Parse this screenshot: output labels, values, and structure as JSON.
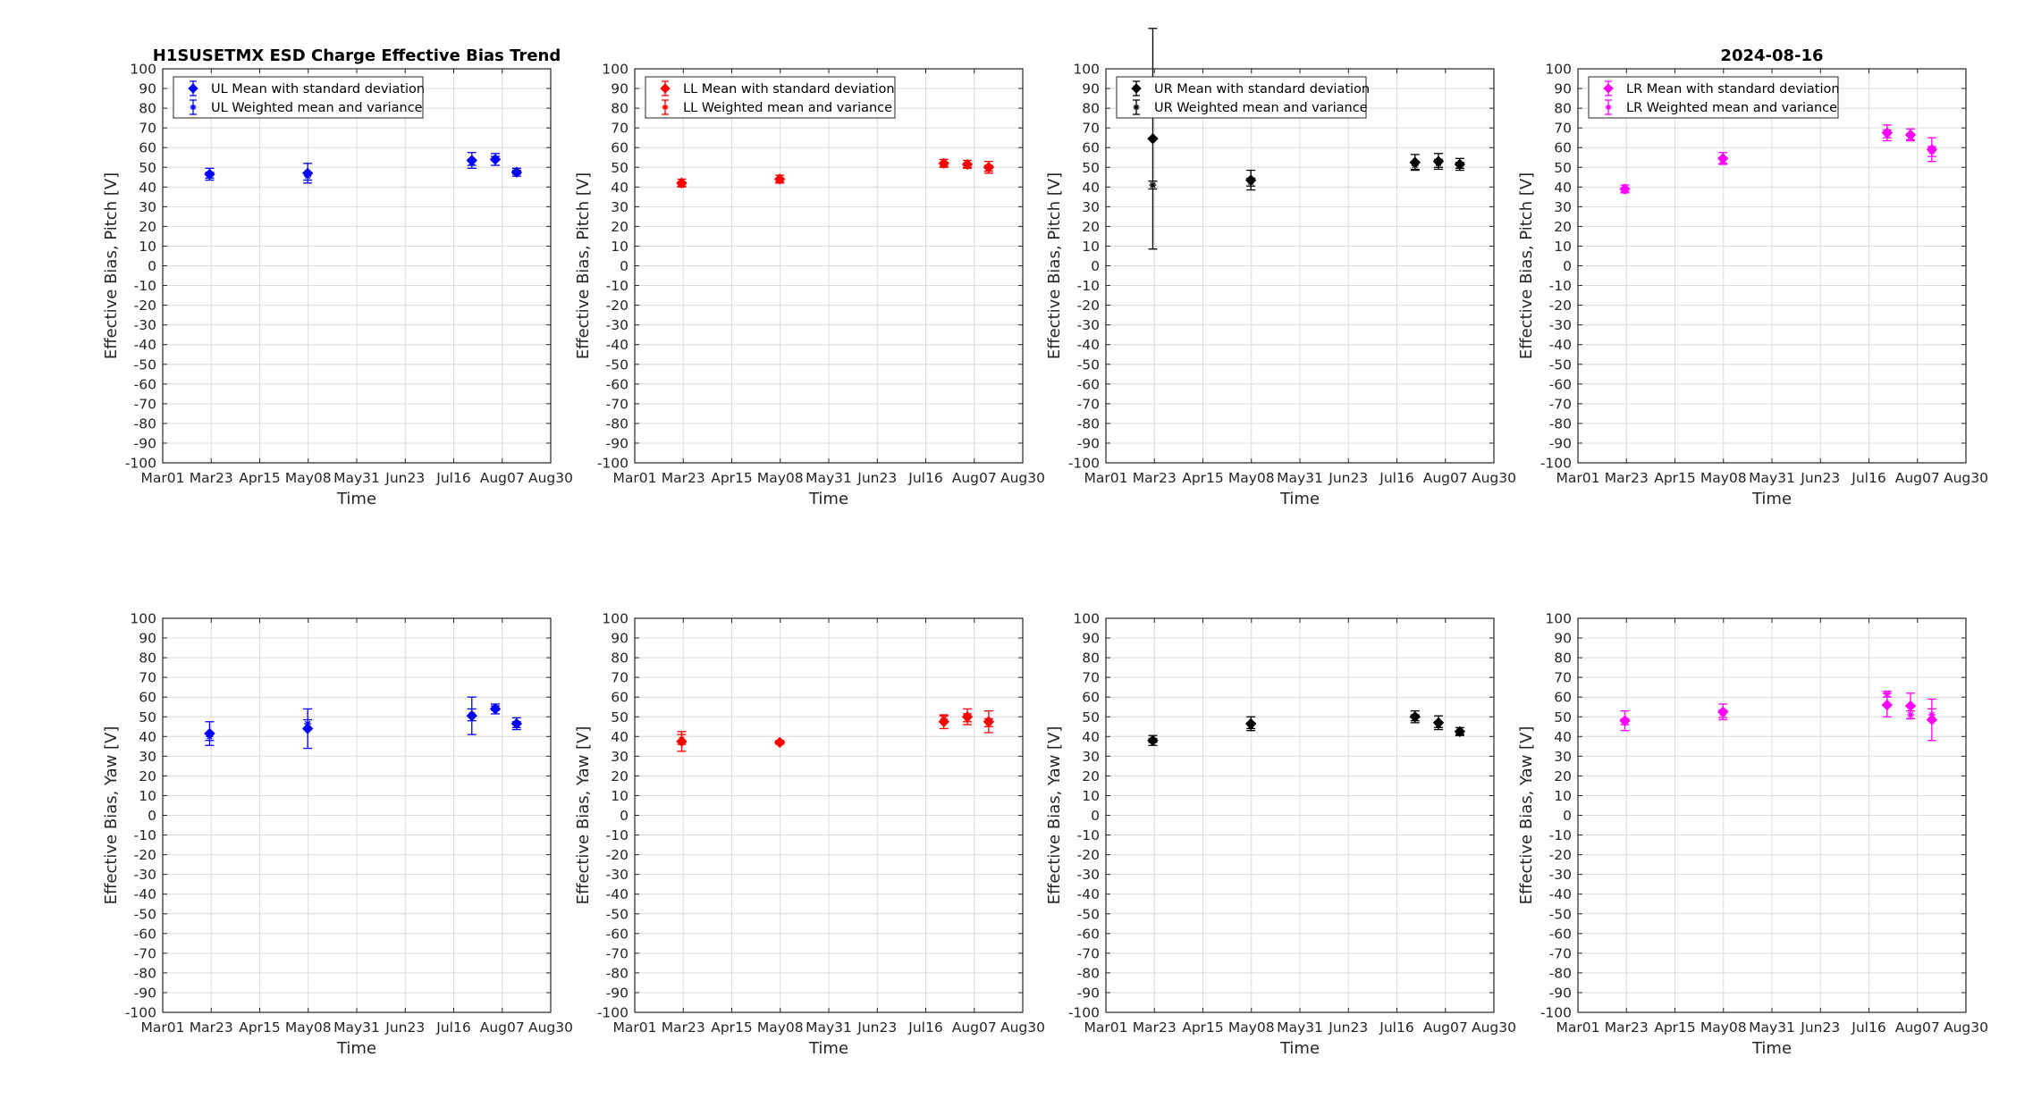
{
  "chart_data": [
    {
      "type": "scatter",
      "title": "H1SUSETMX ESD Charge Effective Bias Trend",
      "xlabel": "Time",
      "ylabel": "Effective Bias, Pitch [V]",
      "ylim": [
        -100,
        100
      ],
      "yticks": [
        100,
        90,
        80,
        70,
        60,
        50,
        40,
        30,
        20,
        10,
        0,
        -10,
        -20,
        -30,
        -40,
        -50,
        -60,
        -70,
        -80,
        -90,
        -100
      ],
      "xticks": [
        "Mar01",
        "Mar23",
        "Apr15",
        "May08",
        "May31",
        "Jun23",
        "Jul16",
        "Aug07",
        "Aug30"
      ],
      "xlim": [
        "2024-03-01",
        "2024-08-30"
      ],
      "grid": true,
      "legend_position": "top-left",
      "color": "#0000ff",
      "series": [
        {
          "name": "UL Mean with standard deviation",
          "marker": "diamond",
          "x": [
            "2024-03-23",
            "2024-05-08",
            "2024-07-24",
            "2024-08-04",
            "2024-08-14"
          ],
          "y": [
            46.5,
            47,
            53.5,
            54,
            47.5
          ],
          "err": [
            3,
            5,
            4,
            3,
            2
          ]
        },
        {
          "name": "UL Weighted mean and variance",
          "marker": "star",
          "x": [
            "2024-03-23",
            "2024-05-08",
            "2024-07-24",
            "2024-08-04",
            "2024-08-14"
          ],
          "y": [
            46,
            45.5,
            52.5,
            54.5,
            47.5
          ],
          "err": [
            1.5,
            2,
            1.5,
            1,
            1
          ]
        }
      ]
    },
    {
      "type": "scatter",
      "title": "",
      "xlabel": "Time",
      "ylabel": "Effective Bias, Pitch [V]",
      "ylim": [
        -100,
        100
      ],
      "yticks": [
        100,
        90,
        80,
        70,
        60,
        50,
        40,
        30,
        20,
        10,
        0,
        -10,
        -20,
        -30,
        -40,
        -50,
        -60,
        -70,
        -80,
        -90,
        -100
      ],
      "xticks": [
        "Mar01",
        "Mar23",
        "Apr15",
        "May08",
        "May31",
        "Jun23",
        "Jul16",
        "Aug07",
        "Aug30"
      ],
      "xlim": [
        "2024-03-01",
        "2024-08-30"
      ],
      "grid": true,
      "legend_position": "top-left",
      "color": "#ff0000",
      "series": [
        {
          "name": "LL Mean with standard deviation",
          "marker": "diamond",
          "x": [
            "2024-03-23",
            "2024-05-08",
            "2024-07-24",
            "2024-08-04",
            "2024-08-14"
          ],
          "y": [
            42,
            44,
            52,
            51.5,
            50
          ],
          "err": [
            2,
            2,
            2,
            2,
            3
          ]
        },
        {
          "name": "LL Weighted mean and variance",
          "marker": "star",
          "x": [
            "2024-03-23",
            "2024-05-08",
            "2024-07-24",
            "2024-08-04",
            "2024-08-14"
          ],
          "y": [
            41.5,
            43.5,
            51.5,
            51,
            49.5
          ],
          "err": [
            1,
            1,
            1,
            1,
            1.5
          ]
        }
      ]
    },
    {
      "type": "scatter",
      "title": "",
      "xlabel": "Time",
      "ylabel": "Effective Bias, Pitch [V]",
      "ylim": [
        -100,
        100
      ],
      "yticks": [
        100,
        90,
        80,
        70,
        60,
        50,
        40,
        30,
        20,
        10,
        0,
        -10,
        -20,
        -30,
        -40,
        -50,
        -60,
        -70,
        -80,
        -90,
        -100
      ],
      "xticks": [
        "Mar01",
        "Mar23",
        "Apr15",
        "May08",
        "May31",
        "Jun23",
        "Jul16",
        "Aug07",
        "Aug30"
      ],
      "xlim": [
        "2024-03-01",
        "2024-08-30"
      ],
      "grid": true,
      "legend_position": "top-left",
      "color": "#000000",
      "series": [
        {
          "name": "UR Mean with standard deviation",
          "marker": "diamond",
          "x": [
            "2024-03-23",
            "2024-05-08",
            "2024-07-24",
            "2024-08-04",
            "2024-08-14"
          ],
          "y": [
            64.5,
            43.5,
            52.5,
            53,
            51.5
          ],
          "err": [
            56,
            5,
            4,
            4,
            3
          ]
        },
        {
          "name": "UR Weighted mean and variance",
          "marker": "star",
          "x": [
            "2024-03-23",
            "2024-05-08",
            "2024-07-24",
            "2024-08-04",
            "2024-08-14"
          ],
          "y": [
            41,
            42.5,
            51,
            52,
            51
          ],
          "err": [
            2,
            2,
            2,
            2,
            1.5
          ]
        }
      ]
    },
    {
      "type": "scatter",
      "title": "2024-08-16",
      "xlabel": "Time",
      "ylabel": "Effective Bias, Pitch [V]",
      "ylim": [
        -100,
        100
      ],
      "yticks": [
        100,
        90,
        80,
        70,
        60,
        50,
        40,
        30,
        20,
        10,
        0,
        -10,
        -20,
        -30,
        -40,
        -50,
        -60,
        -70,
        -80,
        -90,
        -100
      ],
      "xticks": [
        "Mar01",
        "Mar23",
        "Apr15",
        "May08",
        "May31",
        "Jun23",
        "Jul16",
        "Aug07",
        "Aug30"
      ],
      "xlim": [
        "2024-03-01",
        "2024-08-30"
      ],
      "grid": true,
      "legend_position": "top-left",
      "color": "#ff00ff",
      "series": [
        {
          "name": "LR Mean with standard deviation",
          "marker": "diamond",
          "x": [
            "2024-03-23",
            "2024-05-08",
            "2024-07-24",
            "2024-08-04",
            "2024-08-14"
          ],
          "y": [
            39,
            54.5,
            67.5,
            66.5,
            59
          ],
          "err": [
            2,
            3,
            4,
            3,
            6
          ]
        },
        {
          "name": "LR Weighted mean and variance",
          "marker": "star",
          "x": [
            "2024-03-23",
            "2024-05-08",
            "2024-07-24",
            "2024-08-04",
            "2024-08-14"
          ],
          "y": [
            38.5,
            53.5,
            67,
            65.5,
            58
          ],
          "err": [
            1,
            1.5,
            2,
            1.5,
            2.5
          ]
        }
      ]
    },
    {
      "type": "scatter",
      "title": "",
      "xlabel": "Time",
      "ylabel": "Effective Bias, Yaw [V]",
      "ylim": [
        -100,
        100
      ],
      "yticks": [
        100,
        90,
        80,
        70,
        60,
        50,
        40,
        30,
        20,
        10,
        0,
        -10,
        -20,
        -30,
        -40,
        -50,
        -60,
        -70,
        -80,
        -90,
        -100
      ],
      "xticks": [
        "Mar01",
        "Mar23",
        "Apr15",
        "May08",
        "May31",
        "Jun23",
        "Jul16",
        "Aug07",
        "Aug30"
      ],
      "xlim": [
        "2024-03-01",
        "2024-08-30"
      ],
      "grid": true,
      "legend_position": "none",
      "color": "#0000ff",
      "series": [
        {
          "name": "UL Mean with standard deviation",
          "marker": "diamond",
          "x": [
            "2024-03-23",
            "2024-05-08",
            "2024-07-24",
            "2024-08-04",
            "2024-08-14"
          ],
          "y": [
            41.5,
            44,
            50.5,
            54,
            46.5
          ],
          "err": [
            6,
            10,
            9.5,
            2.5,
            3
          ]
        },
        {
          "name": "UL Weighted mean and variance",
          "marker": "star",
          "x": [
            "2024-03-23",
            "2024-05-08",
            "2024-07-24",
            "2024-08-04",
            "2024-08-14"
          ],
          "y": [
            40,
            46.5,
            51,
            54.5,
            46
          ],
          "err": [
            2,
            2,
            3,
            1,
            1.5
          ]
        }
      ]
    },
    {
      "type": "scatter",
      "title": "",
      "xlabel": "Time",
      "ylabel": "Effective Bias, Yaw [V]",
      "ylim": [
        -100,
        100
      ],
      "yticks": [
        100,
        90,
        80,
        70,
        60,
        50,
        40,
        30,
        20,
        10,
        0,
        -10,
        -20,
        -30,
        -40,
        -50,
        -60,
        -70,
        -80,
        -90,
        -100
      ],
      "xticks": [
        "Mar01",
        "Mar23",
        "Apr15",
        "May08",
        "May31",
        "Jun23",
        "Jul16",
        "Aug07",
        "Aug30"
      ],
      "xlim": [
        "2024-03-01",
        "2024-08-30"
      ],
      "grid": true,
      "legend_position": "none",
      "color": "#ff0000",
      "series": [
        {
          "name": "LL Mean with standard deviation",
          "marker": "diamond",
          "x": [
            "2024-03-23",
            "2024-05-08",
            "2024-07-24",
            "2024-08-04",
            "2024-08-14"
          ],
          "y": [
            37.5,
            37,
            47.5,
            50,
            47.5
          ],
          "err": [
            5,
            1,
            3.5,
            4,
            5.5
          ]
        },
        {
          "name": "LL Weighted mean and variance",
          "marker": "star",
          "x": [
            "2024-03-23",
            "2024-05-08",
            "2024-07-24",
            "2024-08-04",
            "2024-08-14"
          ],
          "y": [
            38.5,
            37,
            49,
            49.5,
            47
          ],
          "err": [
            2.5,
            0.5,
            1.5,
            2,
            2
          ]
        }
      ]
    },
    {
      "type": "scatter",
      "title": "",
      "xlabel": "Time",
      "ylabel": "Effective Bias, Yaw [V]",
      "ylim": [
        -100,
        100
      ],
      "yticks": [
        100,
        90,
        80,
        70,
        60,
        50,
        40,
        30,
        20,
        10,
        0,
        -10,
        -20,
        -30,
        -40,
        -50,
        -60,
        -70,
        -80,
        -90,
        -100
      ],
      "xticks": [
        "Mar01",
        "Mar23",
        "Apr15",
        "May08",
        "May31",
        "Jun23",
        "Jul16",
        "Aug07",
        "Aug30"
      ],
      "xlim": [
        "2024-03-01",
        "2024-08-30"
      ],
      "grid": true,
      "legend_position": "none",
      "color": "#000000",
      "series": [
        {
          "name": "UR Mean with standard deviation",
          "marker": "diamond",
          "x": [
            "2024-03-23",
            "2024-05-08",
            "2024-07-24",
            "2024-08-04",
            "2024-08-14"
          ],
          "y": [
            38,
            46.5,
            50,
            47,
            42.5
          ],
          "err": [
            2.5,
            3.5,
            3,
            3.5,
            2
          ]
        },
        {
          "name": "UR Weighted mean and variance",
          "marker": "star",
          "x": [
            "2024-03-23",
            "2024-05-08",
            "2024-07-24",
            "2024-08-04",
            "2024-08-14"
          ],
          "y": [
            38,
            45.5,
            49.5,
            46,
            42
          ],
          "err": [
            1,
            1.5,
            1.5,
            1.5,
            1
          ]
        }
      ]
    },
    {
      "type": "scatter",
      "title": "",
      "xlabel": "Time",
      "ylabel": "Effective Bias, Yaw [V]",
      "ylim": [
        -100,
        100
      ],
      "yticks": [
        100,
        90,
        80,
        70,
        60,
        50,
        40,
        30,
        20,
        10,
        0,
        -10,
        -20,
        -30,
        -40,
        -50,
        -60,
        -70,
        -80,
        -90,
        -100
      ],
      "xticks": [
        "Mar01",
        "Mar23",
        "Apr15",
        "May08",
        "May31",
        "Jun23",
        "Jul16",
        "Aug07",
        "Aug30"
      ],
      "xlim": [
        "2024-03-01",
        "2024-08-30"
      ],
      "grid": true,
      "legend_position": "none",
      "color": "#ff00ff",
      "series": [
        {
          "name": "LR Mean with standard deviation",
          "marker": "diamond",
          "x": [
            "2024-03-23",
            "2024-05-08",
            "2024-07-24",
            "2024-08-04",
            "2024-08-14"
          ],
          "y": [
            48,
            52.5,
            56,
            55.5,
            48.5
          ],
          "err": [
            5,
            4,
            6,
            6.5,
            10.5
          ]
        },
        {
          "name": "LR Weighted mean and variance",
          "marker": "star",
          "x": [
            "2024-03-23",
            "2024-05-08",
            "2024-07-24",
            "2024-08-04",
            "2024-08-14"
          ],
          "y": [
            47.5,
            51.5,
            61.5,
            51,
            51
          ],
          "err": [
            1.5,
            2,
            1.5,
            2,
            3
          ]
        }
      ]
    }
  ]
}
